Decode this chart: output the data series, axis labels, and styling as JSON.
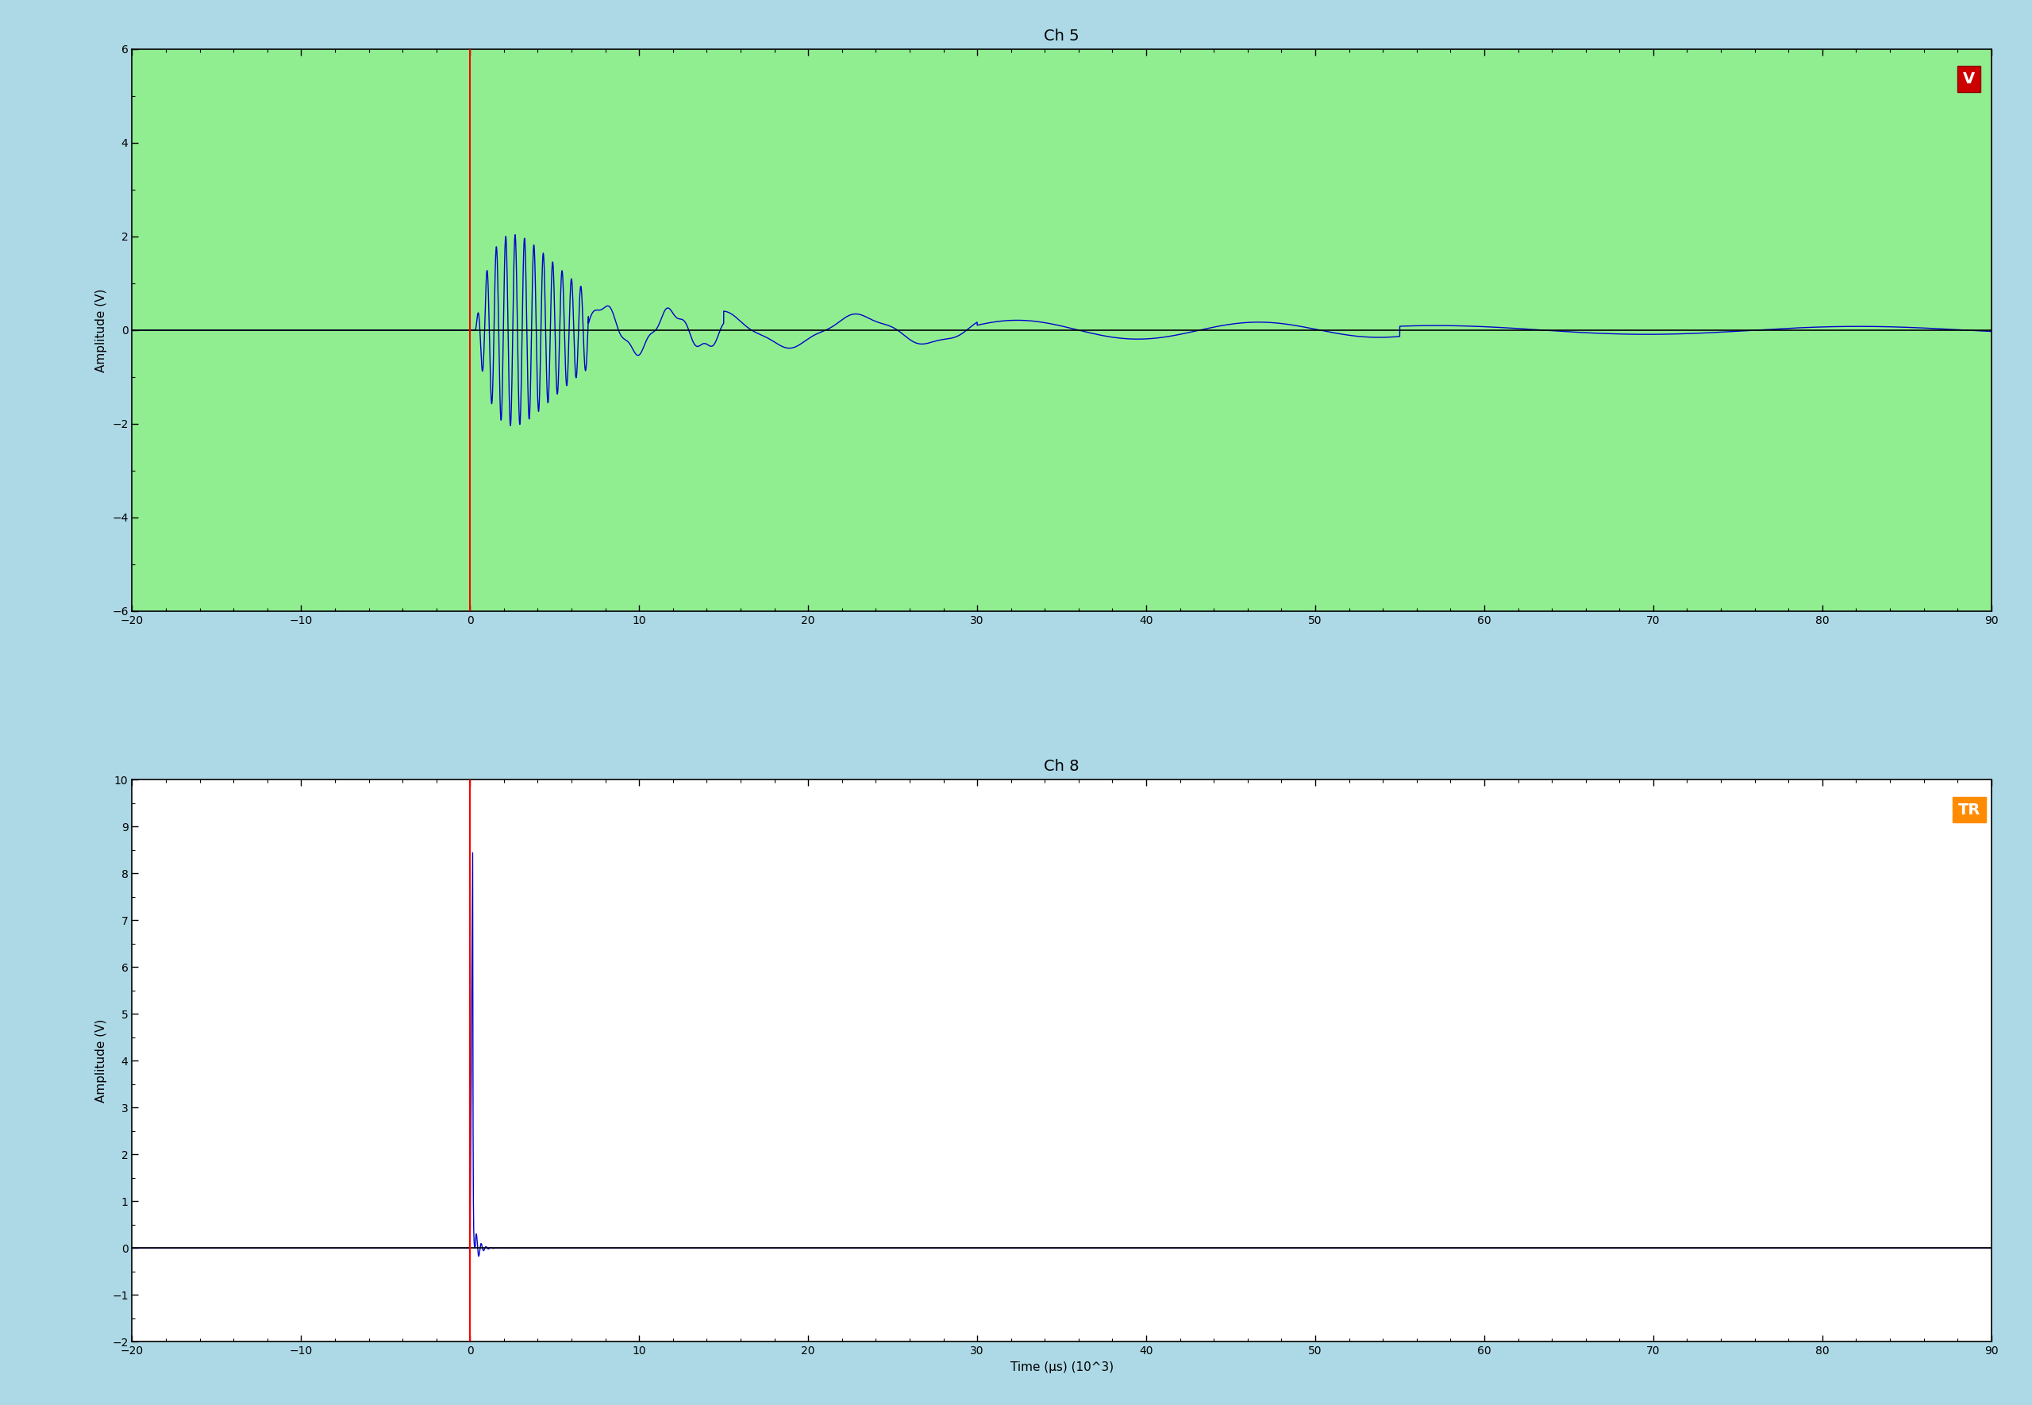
{
  "fig_bg_color": "#add8e6",
  "plot1_bg_color": "#90ee90",
  "plot2_bg_color": "#ffffff",
  "title1": "Ch 5",
  "title2": "Ch 8",
  "xlabel": "Time (μs) (10^3)",
  "ylabel": "Amplitude (V)",
  "xlim": [
    -20,
    90
  ],
  "ylim1": [
    -6,
    6
  ],
  "ylim2": [
    -2,
    10
  ],
  "yticks1": [
    -6,
    -4,
    -2,
    0,
    2,
    4,
    6
  ],
  "yticks2": [
    -2,
    -1,
    0,
    1,
    2,
    3,
    4,
    5,
    6,
    7,
    8,
    9,
    10
  ],
  "xticks": [
    -20,
    -10,
    0,
    10,
    20,
    30,
    40,
    50,
    60,
    70,
    80,
    90
  ],
  "vline_x": 0.0,
  "vline_color": "#ff0000",
  "signal_color": "#0000cd",
  "zero_line_color": "#000000",
  "badge1_color": "#cc0000",
  "badge1_text": "V",
  "badge2_color": "#ff8c00",
  "badge2_text": "TR",
  "title_fontsize": 14,
  "label_fontsize": 11,
  "tick_fontsize": 10,
  "badge_fontsize": 14
}
